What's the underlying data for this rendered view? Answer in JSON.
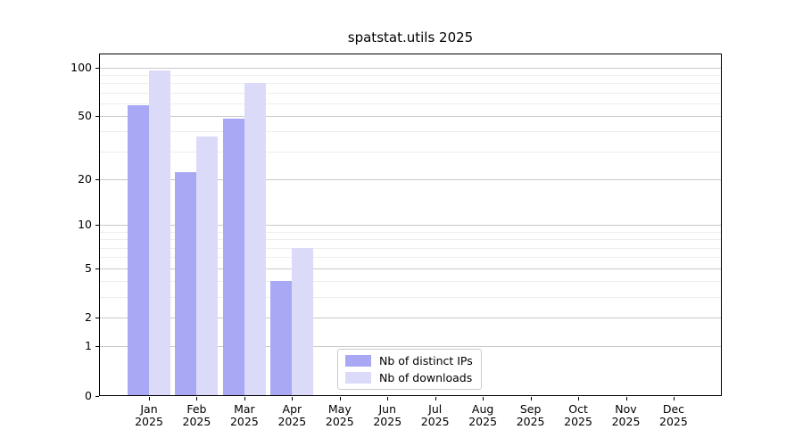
{
  "title": "spatstat.utils 2025",
  "chart_data": {
    "type": "bar",
    "title": "spatstat.utils 2025",
    "x_categories": [
      "Jan",
      "Feb",
      "Mar",
      "Apr",
      "May",
      "Jun",
      "Jul",
      "Aug",
      "Sep",
      "Oct",
      "Nov",
      "Dec"
    ],
    "x_year": "2025",
    "series": [
      {
        "name": "Nb of distinct IPs",
        "color": "#a8a8f4",
        "values": [
          58,
          22,
          48,
          4,
          0,
          0,
          0,
          0,
          0,
          0,
          0,
          0
        ]
      },
      {
        "name": "Nb of downloads",
        "color": "#dbdbf9",
        "values": [
          96,
          37,
          80,
          7,
          0,
          0,
          0,
          0,
          0,
          0,
          0,
          0
        ]
      }
    ],
    "y_scale": "log10(value+1)",
    "y_ticks": [
      0,
      1,
      2,
      5,
      10,
      20,
      50,
      100
    ],
    "y_minor_gridlines": [
      3,
      4,
      6,
      7,
      8,
      9,
      30,
      40,
      60,
      70,
      80,
      90
    ],
    "ylim": [
      0,
      122
    ],
    "grid": "horizontal",
    "legend_position": "lower-center-inside"
  },
  "colors": {
    "major_gridline": "#c9c9c9",
    "minor_gridline": "#eeeeee",
    "axis_frame": "#000000",
    "background": "#ffffff"
  }
}
